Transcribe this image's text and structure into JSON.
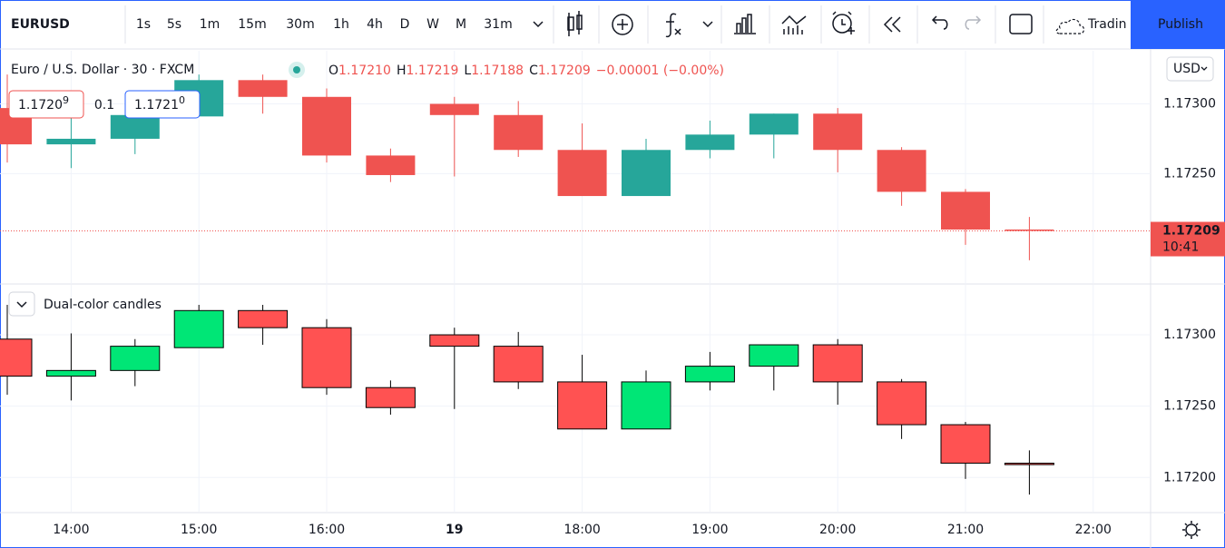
{
  "toolbar": {
    "symbol": "EURUSD",
    "intervals": [
      "1s",
      "5s",
      "1m",
      "15m",
      "30m",
      "1h",
      "4h",
      "D",
      "W",
      "M",
      "31m"
    ],
    "active_interval": "30m",
    "trading": "Tradin",
    "publish": "Publish"
  },
  "legend": {
    "title": "Euro / U.S. Dollar · 30 · FXCM",
    "o_label": "O",
    "open": "1.17210",
    "h_label": "H",
    "high": "1.17219",
    "l_label": "L",
    "low": "1.17188",
    "c_label": "C",
    "close": "1.17209",
    "change": "−0.00001 (−0.00%)"
  },
  "order_panel": {
    "sell": "1.1720",
    "sell_pip": "9",
    "spread": "0.1",
    "buy": "1.1721",
    "buy_pip": "0"
  },
  "currency": "USD",
  "countdown": "10:41",
  "indicator_name": "Dual-color candles",
  "chart_data": [
    {
      "type": "candlestick",
      "ylim": [
        1.17171,
        1.17338
      ],
      "yticks": [
        {
          "value": 1.173,
          "label": "1.17300"
        },
        {
          "value": 1.1725,
          "label": "1.17250"
        }
      ],
      "grid": true,
      "series": [
        {
          "up_color": "#26a69a",
          "down_color": "#ef5350",
          "open": [
            1.17297,
            1.17271,
            1.17275,
            1.17291,
            1.17317,
            1.17305,
            1.17263,
            1.173,
            1.17292,
            1.17267,
            1.17234,
            1.17267,
            1.17278,
            1.17293,
            1.17267,
            1.17237,
            1.1721,
            null
          ],
          "high": [
            1.17321,
            1.17301,
            1.17297,
            1.17321,
            1.17321,
            1.17311,
            1.17268,
            1.17305,
            1.17302,
            1.17286,
            1.17275,
            1.17288,
            1.17293,
            1.17297,
            1.17269,
            1.17239,
            1.17219,
            null
          ],
          "low": [
            1.17258,
            1.17254,
            1.17264,
            1.17291,
            1.17293,
            1.17258,
            1.17244,
            1.17248,
            1.17262,
            1.17234,
            1.17234,
            1.17261,
            1.17261,
            1.17251,
            1.17227,
            1.17199,
            1.17188,
            null
          ],
          "close": [
            1.17271,
            1.17275,
            1.17292,
            1.17317,
            1.17305,
            1.17263,
            1.17249,
            1.17292,
            1.17267,
            1.17234,
            1.17267,
            1.17278,
            1.17293,
            1.17267,
            1.17237,
            1.1721,
            1.17209,
            null
          ]
        }
      ]
    },
    {
      "type": "candlestick",
      "ylim": [
        1.17176,
        1.17335
      ],
      "yticks": [
        {
          "value": 1.173,
          "label": "1.17300"
        },
        {
          "value": 1.1725,
          "label": "1.17250"
        },
        {
          "value": 1.172,
          "label": "1.17200"
        }
      ],
      "grid": true,
      "categories": [
        null,
        "14:00",
        null,
        "15:00",
        null,
        "16:00",
        null,
        "19",
        null,
        "18:00",
        null,
        "19:00",
        null,
        "20:00",
        null,
        "21:00",
        null,
        "22:00"
      ],
      "series": [
        {
          "up_color": "#00e676",
          "down_color": "#ff5252",
          "border_color": "#000000",
          "open": [
            1.17297,
            1.17271,
            1.17275,
            1.17291,
            1.17317,
            1.17305,
            1.17263,
            1.173,
            1.17292,
            1.17267,
            1.17234,
            1.17267,
            1.17278,
            1.17293,
            1.17267,
            1.17237,
            1.1721,
            null
          ],
          "high": [
            1.17321,
            1.17301,
            1.17297,
            1.17321,
            1.17321,
            1.17311,
            1.17268,
            1.17305,
            1.17302,
            1.17286,
            1.17275,
            1.17288,
            1.17293,
            1.17297,
            1.17269,
            1.17239,
            1.17219,
            null
          ],
          "low": [
            1.17258,
            1.17254,
            1.17264,
            1.17291,
            1.17293,
            1.17258,
            1.17244,
            1.17248,
            1.17262,
            1.17234,
            1.17234,
            1.17261,
            1.17261,
            1.17251,
            1.17227,
            1.17199,
            1.17188,
            null
          ],
          "close": [
            1.17271,
            1.17275,
            1.17292,
            1.17317,
            1.17305,
            1.17263,
            1.17249,
            1.17292,
            1.17267,
            1.17234,
            1.17267,
            1.17278,
            1.17293,
            1.17267,
            1.17237,
            1.1721,
            1.17209,
            null
          ]
        }
      ]
    }
  ]
}
